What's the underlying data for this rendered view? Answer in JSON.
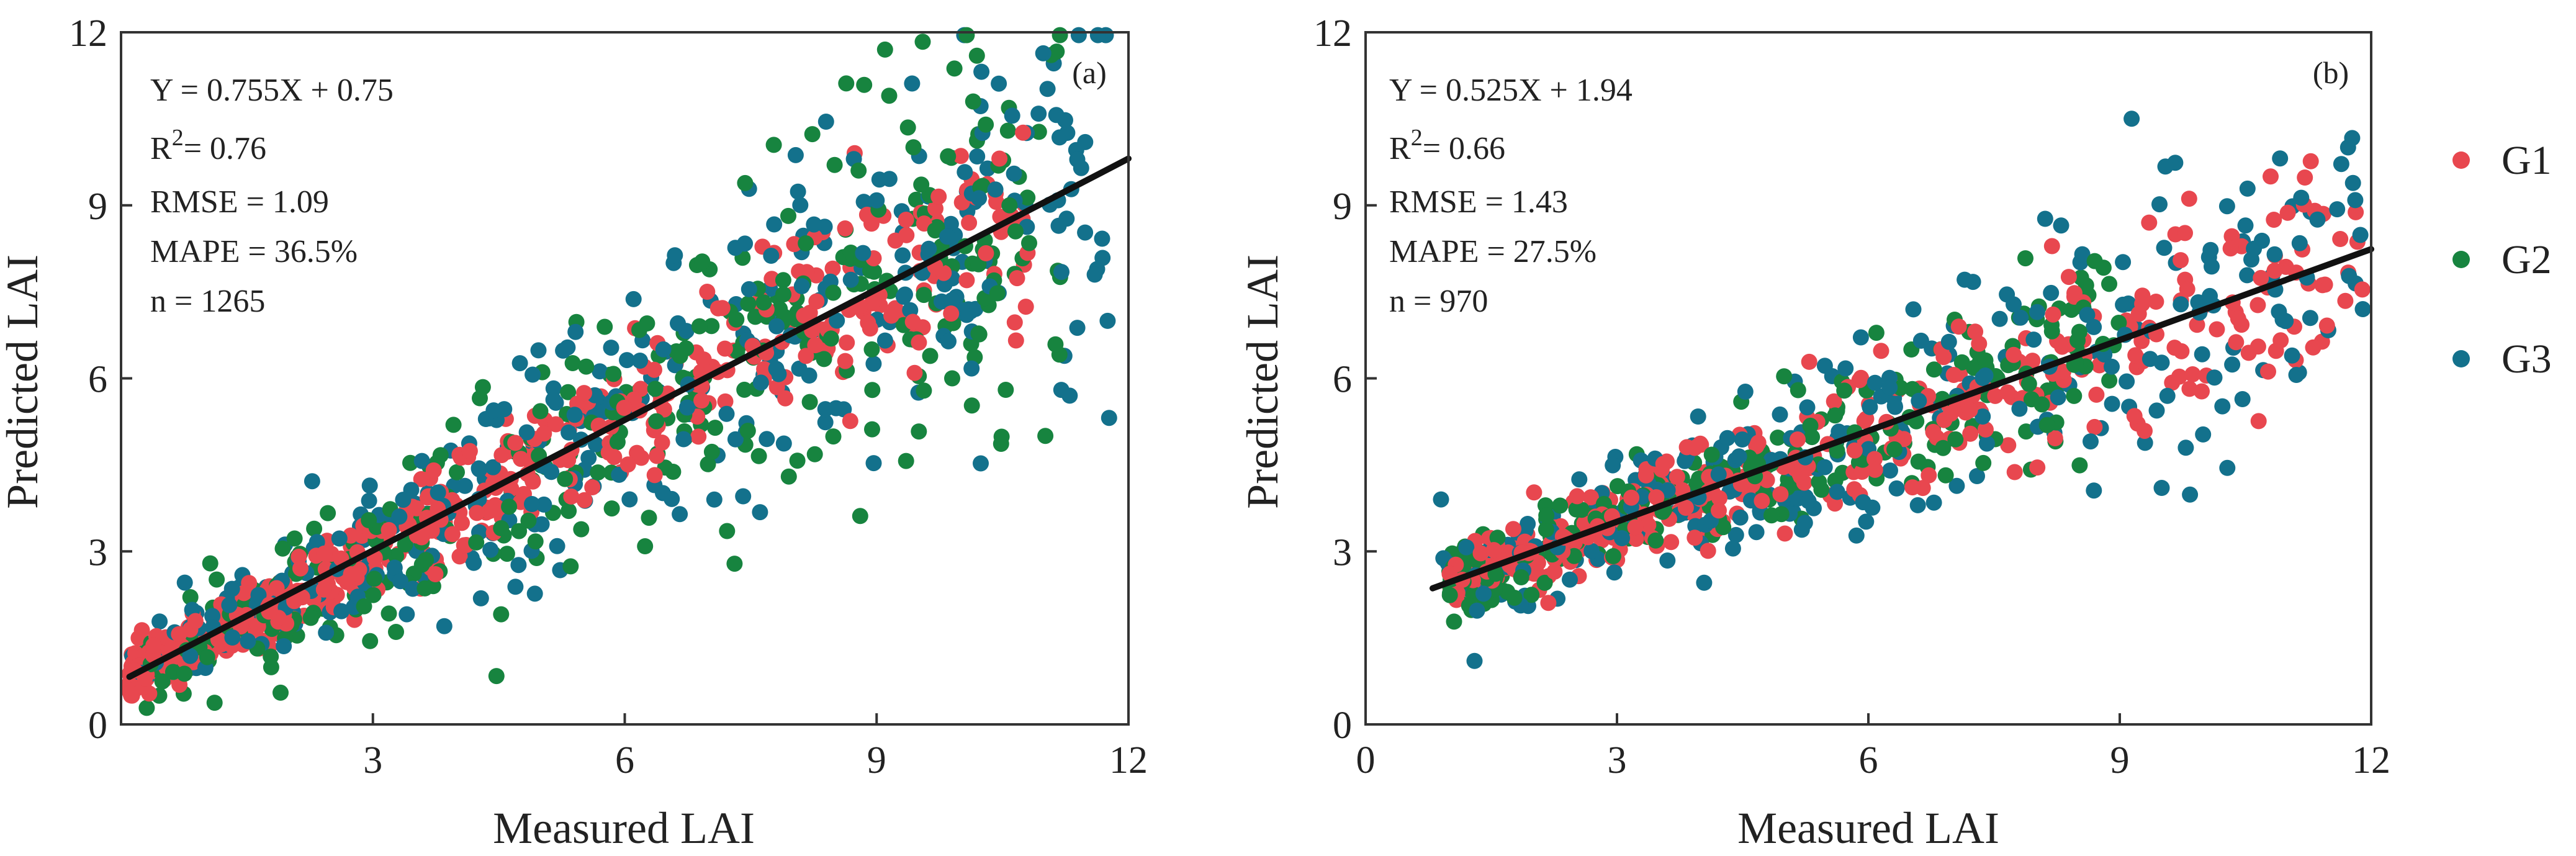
{
  "colors": {
    "G1": "#e8474f",
    "G2": "#17843f",
    "G3": "#13718c",
    "fit": "#111111"
  },
  "legend": {
    "items": [
      {
        "label": "G1",
        "color": "#e8474f"
      },
      {
        "label": "G2",
        "color": "#17843f"
      },
      {
        "label": "G3",
        "color": "#13718c"
      }
    ]
  },
  "chart_data": [
    {
      "type": "scatter",
      "panel": "(a)",
      "xlabel": "Measured LAI",
      "ylabel": "Predicted  LAI",
      "xlim": [
        0,
        12
      ],
      "ylim": [
        0,
        12
      ],
      "xticks": [
        3,
        6,
        9,
        12
      ],
      "yticks": [
        0,
        3,
        6,
        9,
        12
      ],
      "fit": {
        "slope": 0.755,
        "intercept": 0.75,
        "x_range": [
          0.1,
          12
        ]
      },
      "stats": {
        "equation": "Y = 0.755X + 0.75",
        "r2_prefix": "R",
        "r2_sup": "2",
        "r2_value": "= 0.76",
        "rmse": "RMSE = 1.09",
        "mape": "MAPE = 36.5%",
        "n": "n = 1265"
      },
      "series": [
        {
          "name": "G1",
          "n": 520,
          "x_range": [
            0.1,
            10.8
          ],
          "noise": 0.7,
          "skew": 1.6,
          "seed": 11
        },
        {
          "name": "G2",
          "n": 370,
          "x_range": [
            0.2,
            11.2
          ],
          "noise": 1.15,
          "skew": 1.0,
          "seed": 23
        },
        {
          "name": "G3",
          "n": 375,
          "x_range": [
            0.1,
            11.8
          ],
          "noise": 1.1,
          "skew": 1.0,
          "seed": 37
        }
      ],
      "highlight_points": [
        {
          "series": "G2",
          "x": 9.1,
          "y": 11.7
        },
        {
          "series": "G2",
          "x": 9.15,
          "y": 10.9
        },
        {
          "series": "G2",
          "x": 10.15,
          "y": 10.8
        },
        {
          "series": "G2",
          "x": 10.3,
          "y": 10.4
        },
        {
          "series": "G2",
          "x": 9.85,
          "y": 9.85
        },
        {
          "series": "G2",
          "x": 8.5,
          "y": 9.7
        },
        {
          "series": "G3",
          "x": 11.3,
          "y": 5.7
        },
        {
          "series": "G3",
          "x": 11.2,
          "y": 5.8
        },
        {
          "series": "G2",
          "x": 9.9,
          "y": 6.0
        },
        {
          "series": "G2",
          "x": 1.9,
          "y": 0.55
        }
      ]
    },
    {
      "type": "scatter",
      "panel": "(b)",
      "xlabel": "Measured LAI",
      "ylabel": "Predicted  LAI",
      "xlim": [
        0,
        12
      ],
      "ylim": [
        0,
        12
      ],
      "xticks": [
        0,
        3,
        6,
        9,
        12
      ],
      "yticks": [
        0,
        3,
        6,
        9,
        12
      ],
      "fit": {
        "slope": 0.525,
        "intercept": 1.94,
        "x_range": [
          0.8,
          12
        ]
      },
      "stats": {
        "equation": "Y = 0.525X + 1.94",
        "r2_prefix": "R",
        "r2_sup": "2",
        "r2_value": "= 0.66",
        "rmse": "RMSE = 1.43",
        "mape": "MAPE = 27.5%",
        "n": "n = 970"
      },
      "series": [
        {
          "name": "G1",
          "n": 420,
          "x_range": [
            1.0,
            11.9
          ],
          "noise": 0.6,
          "skew": 1.5,
          "seed": 51
        },
        {
          "name": "G2",
          "n": 270,
          "x_range": [
            1.0,
            9.0
          ],
          "noise": 0.65,
          "skew": 1.4,
          "seed": 67
        },
        {
          "name": "G3",
          "n": 280,
          "x_range": [
            0.9,
            11.9
          ],
          "noise": 0.9,
          "skew": 1.0,
          "seed": 79
        }
      ],
      "highlight_points": [
        {
          "series": "G1",
          "x": 10.8,
          "y": 9.5
        },
        {
          "series": "G1",
          "x": 9.35,
          "y": 8.7
        },
        {
          "series": "G3",
          "x": 8.3,
          "y": 8.65
        },
        {
          "series": "G3",
          "x": 10.5,
          "y": 8.65
        },
        {
          "series": "G3",
          "x": 0.9,
          "y": 3.9
        },
        {
          "series": "G3",
          "x": 1.3,
          "y": 1.1
        },
        {
          "series": "G3",
          "x": 9.5,
          "y": 4.1
        },
        {
          "series": "G3",
          "x": 11.9,
          "y": 7.2
        }
      ]
    }
  ]
}
